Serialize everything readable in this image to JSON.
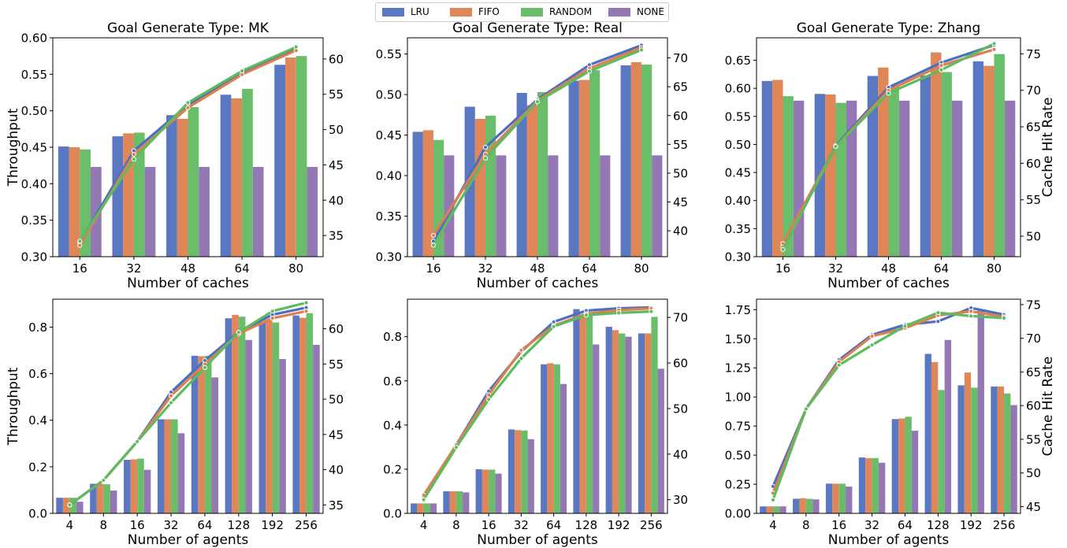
{
  "legend": {
    "items": [
      {
        "name": "LRU",
        "color": "#5a77c2"
      },
      {
        "name": "FIFO",
        "color": "#e0875a"
      },
      {
        "name": "RANDOM",
        "color": "#6abe6a"
      },
      {
        "name": "NONE",
        "color": "#9478b4"
      }
    ]
  },
  "chart_data": [
    {
      "type": "bar",
      "title": "Goal Generate Type: MK",
      "xlabel": "Number of caches",
      "ylabel": "Throughput",
      "y2label": "",
      "categories": [
        "16",
        "32",
        "48",
        "64",
        "80"
      ],
      "ylim": [
        0.3,
        0.6
      ],
      "yticks": [
        0.3,
        0.35,
        0.4,
        0.45,
        0.5,
        0.55,
        0.6
      ],
      "ytick_labels": [
        "0.30",
        "0.35",
        "0.40",
        "0.45",
        "0.50",
        "0.55",
        "0.60"
      ],
      "y2lim": [
        32,
        63
      ],
      "y2ticks": [
        35,
        40,
        45,
        50,
        55,
        60
      ],
      "series": [
        {
          "name": "LRU",
          "values": [
            0.451,
            0.465,
            0.494,
            0.522,
            0.563
          ]
        },
        {
          "name": "FIFO",
          "values": [
            0.45,
            0.469,
            0.489,
            0.517,
            0.573
          ]
        },
        {
          "name": "RANDOM",
          "values": [
            0.447,
            0.47,
            0.505,
            0.53,
            0.575
          ]
        },
        {
          "name": "NONE",
          "values": [
            0.423,
            0.423,
            0.423,
            0.423,
            0.423
          ]
        }
      ],
      "hit_rate_series": [
        {
          "name": "LRU",
          "values": [
            34.0,
            47.0,
            53.5,
            58.0,
            61.5
          ]
        },
        {
          "name": "FIFO",
          "values": [
            33.6,
            46.5,
            53.1,
            57.8,
            61.2
          ]
        },
        {
          "name": "RANDOM",
          "values": [
            34.2,
            45.8,
            53.8,
            58.3,
            61.7
          ]
        }
      ]
    },
    {
      "type": "bar",
      "title": "Goal Generate Type: Real",
      "xlabel": "Number of caches",
      "ylabel": "",
      "y2label": "",
      "categories": [
        "16",
        "32",
        "48",
        "64",
        "80"
      ],
      "ylim": [
        0.3,
        0.57
      ],
      "yticks": [
        0.3,
        0.35,
        0.4,
        0.45,
        0.5,
        0.55
      ],
      "ytick_labels": [
        "0.30",
        "0.35",
        "0.40",
        "0.45",
        "0.50",
        "0.55"
      ],
      "y2lim": [
        35.5,
        73.5
      ],
      "y2ticks": [
        40,
        45,
        50,
        55,
        60,
        65,
        70
      ],
      "series": [
        {
          "name": "LRU",
          "values": [
            0.454,
            0.485,
            0.502,
            0.517,
            0.536
          ]
        },
        {
          "name": "FIFO",
          "values": [
            0.456,
            0.47,
            0.487,
            0.518,
            0.54
          ]
        },
        {
          "name": "RANDOM",
          "values": [
            0.444,
            0.474,
            0.503,
            0.53,
            0.537
          ]
        },
        {
          "name": "NONE",
          "values": [
            0.425,
            0.425,
            0.425,
            0.425,
            0.425
          ]
        }
      ],
      "hit_rate_series": [
        {
          "name": "LRU",
          "values": [
            38.2,
            54.5,
            62.8,
            68.8,
            72.2
          ]
        },
        {
          "name": "FIFO",
          "values": [
            39.2,
            53.3,
            62.6,
            68.2,
            71.8
          ]
        },
        {
          "name": "RANDOM",
          "values": [
            37.5,
            52.6,
            62.4,
            67.7,
            71.4
          ]
        }
      ]
    },
    {
      "type": "bar",
      "title": "Goal Generate Type: Zhang",
      "xlabel": "Number of caches",
      "ylabel": "",
      "y2label": "Cache Hit Rate",
      "categories": [
        "16",
        "32",
        "48",
        "64",
        "80"
      ],
      "ylim": [
        0.3,
        0.69
      ],
      "yticks": [
        0.3,
        0.35,
        0.4,
        0.45,
        0.5,
        0.55,
        0.6,
        0.65
      ],
      "ytick_labels": [
        "0.30",
        "0.35",
        "0.40",
        "0.45",
        "0.50",
        "0.55",
        "0.60",
        "0.65"
      ],
      "y2lim": [
        47.2,
        77.2
      ],
      "y2ticks": [
        50,
        55,
        60,
        65,
        70,
        75
      ],
      "series": [
        {
          "name": "LRU",
          "values": [
            0.613,
            0.59,
            0.622,
            0.623,
            0.648
          ]
        },
        {
          "name": "FIFO",
          "values": [
            0.615,
            0.589,
            0.637,
            0.664,
            0.64
          ]
        },
        {
          "name": "RANDOM",
          "values": [
            0.586,
            0.574,
            0.605,
            0.629,
            0.661
          ]
        },
        {
          "name": "NONE",
          "values": [
            0.578,
            0.578,
            0.578,
            0.578,
            0.578
          ]
        }
      ],
      "hit_rate_series": [
        {
          "name": "LRU",
          "values": [
            48.6,
            62.4,
            70.4,
            73.8,
            76.2
          ]
        },
        {
          "name": "FIFO",
          "values": [
            49.0,
            62.3,
            70.0,
            73.4,
            75.6
          ]
        },
        {
          "name": "RANDOM",
          "values": [
            48.2,
            62.3,
            69.6,
            72.8,
            76.4
          ]
        }
      ]
    },
    {
      "type": "bar",
      "title": "",
      "xlabel": "Number of agents",
      "ylabel": "Throughput",
      "y2label": "",
      "categories": [
        "4",
        "8",
        "16",
        "32",
        "64",
        "128",
        "192",
        "256"
      ],
      "ylim": [
        0.0,
        0.92
      ],
      "yticks": [
        0.0,
        0.2,
        0.4,
        0.6,
        0.8
      ],
      "ytick_labels": [
        "0.0",
        "0.2",
        "0.4",
        "0.6",
        "0.8"
      ],
      "y2lim": [
        33.8,
        64.2
      ],
      "y2ticks": [
        35,
        40,
        45,
        50,
        55,
        60
      ],
      "series": [
        {
          "name": "LRU",
          "values": [
            0.067,
            0.127,
            0.23,
            0.404,
            0.677,
            0.838,
            0.82,
            0.85
          ]
        },
        {
          "name": "FIFO",
          "values": [
            0.067,
            0.127,
            0.232,
            0.404,
            0.675,
            0.853,
            0.83,
            0.84
          ]
        },
        {
          "name": "RANDOM",
          "values": [
            0.067,
            0.125,
            0.235,
            0.404,
            0.677,
            0.845,
            0.82,
            0.86
          ]
        },
        {
          "name": "NONE",
          "values": [
            0.05,
            0.098,
            0.187,
            0.344,
            0.584,
            0.745,
            0.663,
            0.724
          ]
        }
      ],
      "hit_rate_series": [
        {
          "name": "LRU",
          "values": [
            35.0,
            38.5,
            44.0,
            51.0,
            55.5,
            59.5,
            62.0,
            63.0
          ]
        },
        {
          "name": "FIFO",
          "values": [
            35.0,
            38.5,
            44.0,
            50.5,
            55.0,
            59.3,
            61.5,
            62.5
          ]
        },
        {
          "name": "RANDOM",
          "values": [
            35.0,
            38.5,
            44.0,
            49.5,
            54.5,
            59.5,
            62.5,
            63.7
          ]
        }
      ]
    },
    {
      "type": "bar",
      "title": "",
      "xlabel": "Number of agents",
      "ylabel": "",
      "y2label": "",
      "categories": [
        "4",
        "8",
        "16",
        "32",
        "64",
        "128",
        "192",
        "256"
      ],
      "ylim": [
        0.0,
        0.97
      ],
      "yticks": [
        0.0,
        0.2,
        0.4,
        0.6,
        0.8
      ],
      "ytick_labels": [
        "0.0",
        "0.2",
        "0.4",
        "0.6",
        "0.8"
      ],
      "y2lim": [
        27.0,
        74.0
      ],
      "y2ticks": [
        30,
        40,
        50,
        60,
        70
      ],
      "series": [
        {
          "name": "LRU",
          "values": [
            0.045,
            0.1,
            0.2,
            0.38,
            0.675,
            0.925,
            0.845,
            0.815
          ]
        },
        {
          "name": "FIFO",
          "values": [
            0.045,
            0.1,
            0.198,
            0.377,
            0.68,
            0.9,
            0.83,
            0.815
          ]
        },
        {
          "name": "RANDOM",
          "values": [
            0.045,
            0.1,
            0.198,
            0.375,
            0.675,
            0.905,
            0.815,
            0.89
          ]
        },
        {
          "name": "NONE",
          "values": [
            0.045,
            0.095,
            0.18,
            0.336,
            0.586,
            0.765,
            0.8,
            0.655
          ]
        }
      ],
      "hit_rate_series": [
        {
          "name": "LRU",
          "values": [
            30.5,
            42.0,
            53.8,
            62.5,
            69.0,
            71.5,
            72.0,
            72.2
          ]
        },
        {
          "name": "FIFO",
          "values": [
            31.0,
            42.0,
            53.0,
            62.8,
            68.2,
            70.8,
            71.6,
            72.0
          ]
        },
        {
          "name": "RANDOM",
          "values": [
            30.0,
            41.5,
            52.0,
            61.0,
            68.0,
            70.5,
            71.0,
            71.3
          ]
        }
      ]
    },
    {
      "type": "bar",
      "title": "",
      "xlabel": "Number of agents",
      "ylabel": "",
      "y2label": "Cache Hit Rate",
      "categories": [
        "4",
        "8",
        "16",
        "32",
        "64",
        "128",
        "192",
        "256"
      ],
      "ylim": [
        0.0,
        1.84
      ],
      "yticks": [
        0.0,
        0.25,
        0.5,
        0.75,
        1.0,
        1.25,
        1.5,
        1.75
      ],
      "ytick_labels": [
        "0.00",
        "0.25",
        "0.50",
        "0.75",
        "1.00",
        "1.25",
        "1.50",
        "1.75"
      ],
      "y2lim": [
        44.0,
        75.8
      ],
      "y2ticks": [
        45,
        50,
        55,
        60,
        65,
        70,
        75
      ],
      "series": [
        {
          "name": "LRU",
          "values": [
            0.06,
            0.125,
            0.255,
            0.48,
            0.81,
            1.37,
            1.1,
            1.09
          ]
        },
        {
          "name": "FIFO",
          "values": [
            0.06,
            0.13,
            0.255,
            0.475,
            0.815,
            1.3,
            1.21,
            1.09
          ]
        },
        {
          "name": "RANDOM",
          "values": [
            0.06,
            0.125,
            0.255,
            0.475,
            0.83,
            1.06,
            1.08,
            1.03
          ]
        },
        {
          "name": "NONE",
          "values": [
            0.06,
            0.12,
            0.23,
            0.435,
            0.71,
            1.49,
            1.75,
            0.93
          ]
        }
      ],
      "hit_rate_series": [
        {
          "name": "LRU",
          "values": [
            48.0,
            59.5,
            66.8,
            70.5,
            72.0,
            72.5,
            74.5,
            73.5
          ]
        },
        {
          "name": "FIFO",
          "values": [
            47.0,
            59.5,
            66.5,
            70.3,
            71.5,
            73.4,
            74.0,
            73.2
          ]
        },
        {
          "name": "RANDOM",
          "values": [
            46.0,
            59.5,
            66.0,
            69.0,
            71.8,
            73.8,
            73.3,
            73.0
          ]
        }
      ]
    }
  ]
}
